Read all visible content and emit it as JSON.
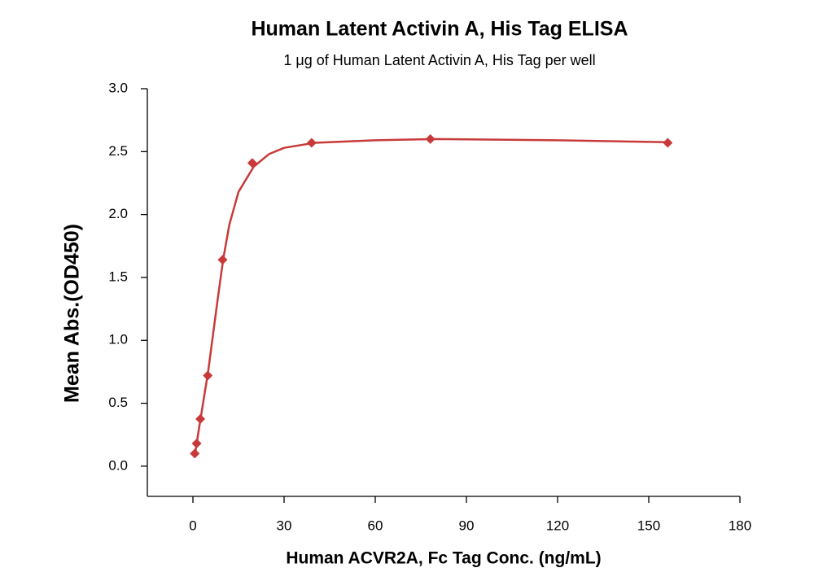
{
  "chart_data": {
    "type": "scatter",
    "title": "Human Latent Activin A, His Tag ELISA",
    "subtitle": "1 μg of Human Latent Activin A, His Tag per well",
    "x_label": "Human ACVR2A, Fc Tag Conc. (ng/mL)",
    "y_label": "Mean Abs.(OD450)",
    "xlim": [
      -15,
      180
    ],
    "ylim": [
      -0.24,
      3.0
    ],
    "xticks": [
      0,
      30,
      60,
      90,
      120,
      150,
      180
    ],
    "yticks": [
      {
        "value": 0,
        "label": "0.0"
      },
      0.5,
      {
        "value": 1,
        "label": "1.0"
      },
      1.5,
      {
        "value": 2,
        "label": "2.0"
      },
      2.5,
      {
        "value": 3,
        "label": "3.0"
      }
    ],
    "series": [
      {
        "color": "#c83a3a",
        "x": [
          0.61,
          1.22,
          2.44,
          4.88,
          9.77,
          19.53,
          39.06,
          78.13,
          156.25
        ],
        "values": [
          0.1,
          0.18,
          0.375,
          0.72,
          1.64,
          2.41,
          2.57,
          2.6,
          2.57
        ]
      },
      {
        "type": "line",
        "color": "#c83a3a",
        "x": [
          0.61,
          2,
          5,
          8,
          10,
          12,
          15,
          20,
          25,
          30,
          40,
          60,
          80,
          120,
          156.25
        ],
        "values": [
          0.08,
          0.3,
          0.75,
          1.3,
          1.65,
          1.92,
          2.18,
          2.38,
          2.48,
          2.53,
          2.57,
          2.59,
          2.6,
          2.59,
          2.575
        ]
      }
    ]
  }
}
